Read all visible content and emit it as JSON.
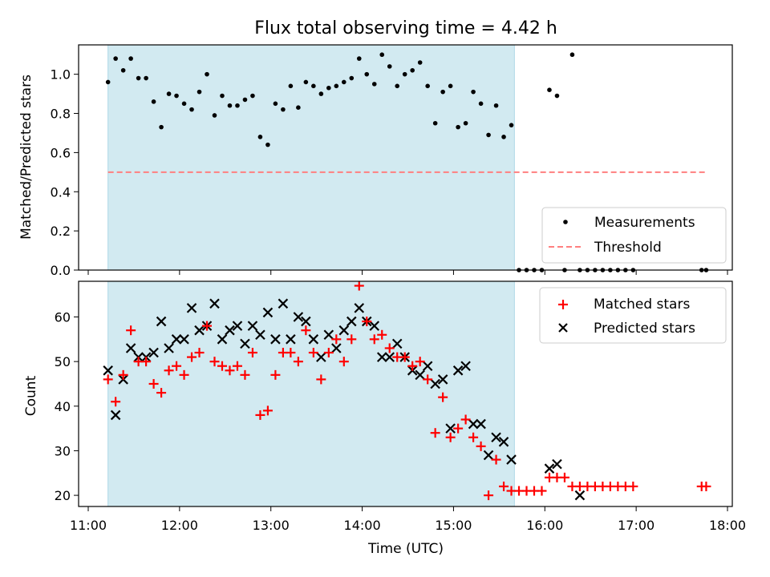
{
  "title": "Flux total observing time = 4.42 h",
  "colors": {
    "shade": "#add8e6",
    "measurement": "#000000",
    "threshold": "#ff7f7f",
    "matched": "#ff0000",
    "predicted": "#000000"
  },
  "chart_data": [
    {
      "type": "scatter",
      "panel": "top",
      "title": "Flux total observing time = 4.42 h",
      "xlabel": "",
      "ylabel": "Matched/Predicted stars",
      "xlim": [
        "11:00",
        "18:00"
      ],
      "ylim": [
        0,
        1.15
      ],
      "yticks": [
        "0.0",
        "0.2",
        "0.4",
        "0.6",
        "0.8",
        "1.0"
      ],
      "shaded_interval": [
        "11:13",
        "15:40"
      ],
      "legend_position": "lower-right",
      "series": [
        {
          "name": "Measurements",
          "marker": "dot",
          "x": [
            "11:13",
            "11:18",
            "11:23",
            "11:28",
            "11:33",
            "11:38",
            "11:43",
            "11:48",
            "11:53",
            "11:58",
            "12:03",
            "12:08",
            "12:13",
            "12:18",
            "12:23",
            "12:28",
            "12:33",
            "12:38",
            "12:43",
            "12:48",
            "12:53",
            "12:58",
            "13:03",
            "13:08",
            "13:13",
            "13:18",
            "13:23",
            "13:28",
            "13:33",
            "13:38",
            "13:43",
            "13:48",
            "13:53",
            "13:58",
            "14:03",
            "14:08",
            "14:13",
            "14:18",
            "14:23",
            "14:28",
            "14:33",
            "14:38",
            "14:43",
            "14:48",
            "14:53",
            "14:58",
            "15:03",
            "15:08",
            "15:13",
            "15:18",
            "15:23",
            "15:28",
            "15:33",
            "15:38",
            "15:43",
            "15:48",
            "15:53",
            "15:58",
            "16:03",
            "16:08",
            "16:13",
            "16:18",
            "16:23",
            "16:28",
            "16:33",
            "16:38",
            "16:43",
            "16:48",
            "16:53",
            "16:58",
            "17:43",
            "17:46"
          ],
          "y": [
            0.96,
            1.08,
            1.02,
            1.08,
            0.98,
            0.98,
            0.86,
            0.73,
            0.9,
            0.89,
            0.85,
            0.82,
            0.91,
            1.0,
            0.79,
            0.89,
            0.84,
            0.84,
            0.87,
            0.89,
            0.68,
            0.64,
            0.85,
            0.82,
            0.94,
            0.83,
            0.96,
            0.94,
            0.9,
            0.93,
            0.94,
            0.96,
            0.98,
            1.08,
            1.0,
            0.95,
            1.1,
            1.04,
            0.94,
            1.0,
            1.02,
            1.06,
            0.94,
            0.75,
            0.91,
            0.94,
            0.73,
            0.75,
            0.91,
            0.85,
            0.69,
            0.84,
            0.68,
            0.74,
            0,
            0,
            0,
            0,
            0.92,
            0.89,
            0,
            1.1,
            0,
            0,
            0,
            0,
            0,
            0,
            0,
            0,
            0,
            0
          ]
        },
        {
          "name": "Threshold",
          "style": "dashed",
          "x": [
            "11:13",
            "17:46"
          ],
          "y": [
            0.5,
            0.5
          ]
        }
      ]
    },
    {
      "type": "scatter",
      "panel": "bottom",
      "xlabel": "Time (UTC)",
      "ylabel": "Count",
      "xlim": [
        "11:00",
        "18:00"
      ],
      "ylim": [
        17.5,
        68
      ],
      "xticks": [
        "11:00",
        "12:00",
        "13:00",
        "14:00",
        "15:00",
        "16:00",
        "17:00",
        "18:00"
      ],
      "yticks": [
        "20",
        "30",
        "40",
        "50",
        "60"
      ],
      "shaded_interval": [
        "11:13",
        "15:40"
      ],
      "legend_position": "upper-right",
      "series": [
        {
          "name": "Matched stars",
          "marker": "plus",
          "x": [
            "11:13",
            "11:18",
            "11:23",
            "11:28",
            "11:33",
            "11:38",
            "11:43",
            "11:48",
            "11:53",
            "11:58",
            "12:03",
            "12:08",
            "12:13",
            "12:18",
            "12:23",
            "12:28",
            "12:33",
            "12:38",
            "12:43",
            "12:48",
            "12:53",
            "12:58",
            "13:03",
            "13:08",
            "13:13",
            "13:18",
            "13:23",
            "13:28",
            "13:33",
            "13:38",
            "13:43",
            "13:48",
            "13:53",
            "13:58",
            "14:03",
            "14:08",
            "14:13",
            "14:18",
            "14:23",
            "14:28",
            "14:33",
            "14:38",
            "14:43",
            "14:48",
            "14:53",
            "14:58",
            "15:03",
            "15:08",
            "15:13",
            "15:18",
            "15:23",
            "15:28",
            "15:33",
            "15:38",
            "15:43",
            "15:48",
            "15:53",
            "15:58",
            "16:03",
            "16:08",
            "16:13",
            "16:18",
            "16:23",
            "16:28",
            "16:33",
            "16:38",
            "16:43",
            "16:48",
            "16:53",
            "16:58",
            "17:43",
            "17:46"
          ],
          "y": [
            46,
            41,
            47,
            57,
            50,
            50,
            45,
            43,
            48,
            49,
            47,
            51,
            52,
            58,
            50,
            49,
            48,
            49,
            47,
            52,
            38,
            39,
            47,
            52,
            52,
            50,
            57,
            52,
            46,
            52,
            55,
            50,
            55,
            67,
            59,
            55,
            56,
            53,
            51,
            51,
            49,
            50,
            46,
            34,
            42,
            33,
            35,
            37,
            33,
            31,
            20,
            28,
            22,
            21,
            21,
            21,
            21,
            21,
            24,
            24,
            24,
            22,
            22,
            22,
            22,
            22,
            22,
            22,
            22,
            22,
            22,
            22
          ]
        },
        {
          "name": "Predicted stars",
          "marker": "x",
          "x": [
            "11:13",
            "11:18",
            "11:23",
            "11:28",
            "11:33",
            "11:38",
            "11:43",
            "11:48",
            "11:53",
            "11:58",
            "12:03",
            "12:08",
            "12:13",
            "12:18",
            "12:23",
            "12:28",
            "12:33",
            "12:38",
            "12:43",
            "12:48",
            "12:53",
            "12:58",
            "13:03",
            "13:08",
            "13:13",
            "13:18",
            "13:23",
            "13:28",
            "13:33",
            "13:38",
            "13:43",
            "13:48",
            "13:53",
            "13:58",
            "14:03",
            "14:08",
            "14:13",
            "14:18",
            "14:23",
            "14:28",
            "14:33",
            "14:38",
            "14:43",
            "14:48",
            "14:53",
            "14:58",
            "15:03",
            "15:08",
            "15:13",
            "15:18",
            "15:23",
            "15:28",
            "15:33",
            "15:38",
            "16:03",
            "16:08",
            "16:23"
          ],
          "y": [
            48,
            38,
            46,
            53,
            51,
            51,
            52,
            59,
            53,
            55,
            55,
            62,
            57,
            58,
            63,
            55,
            57,
            58,
            54,
            58,
            56,
            61,
            55,
            63,
            55,
            60,
            59,
            55,
            51,
            56,
            53,
            57,
            59,
            62,
            59,
            58,
            51,
            51,
            54,
            51,
            48,
            47,
            49,
            45,
            46,
            35,
            48,
            49,
            36,
            36,
            29,
            33,
            32,
            28,
            26,
            27,
            20
          ]
        }
      ]
    }
  ]
}
